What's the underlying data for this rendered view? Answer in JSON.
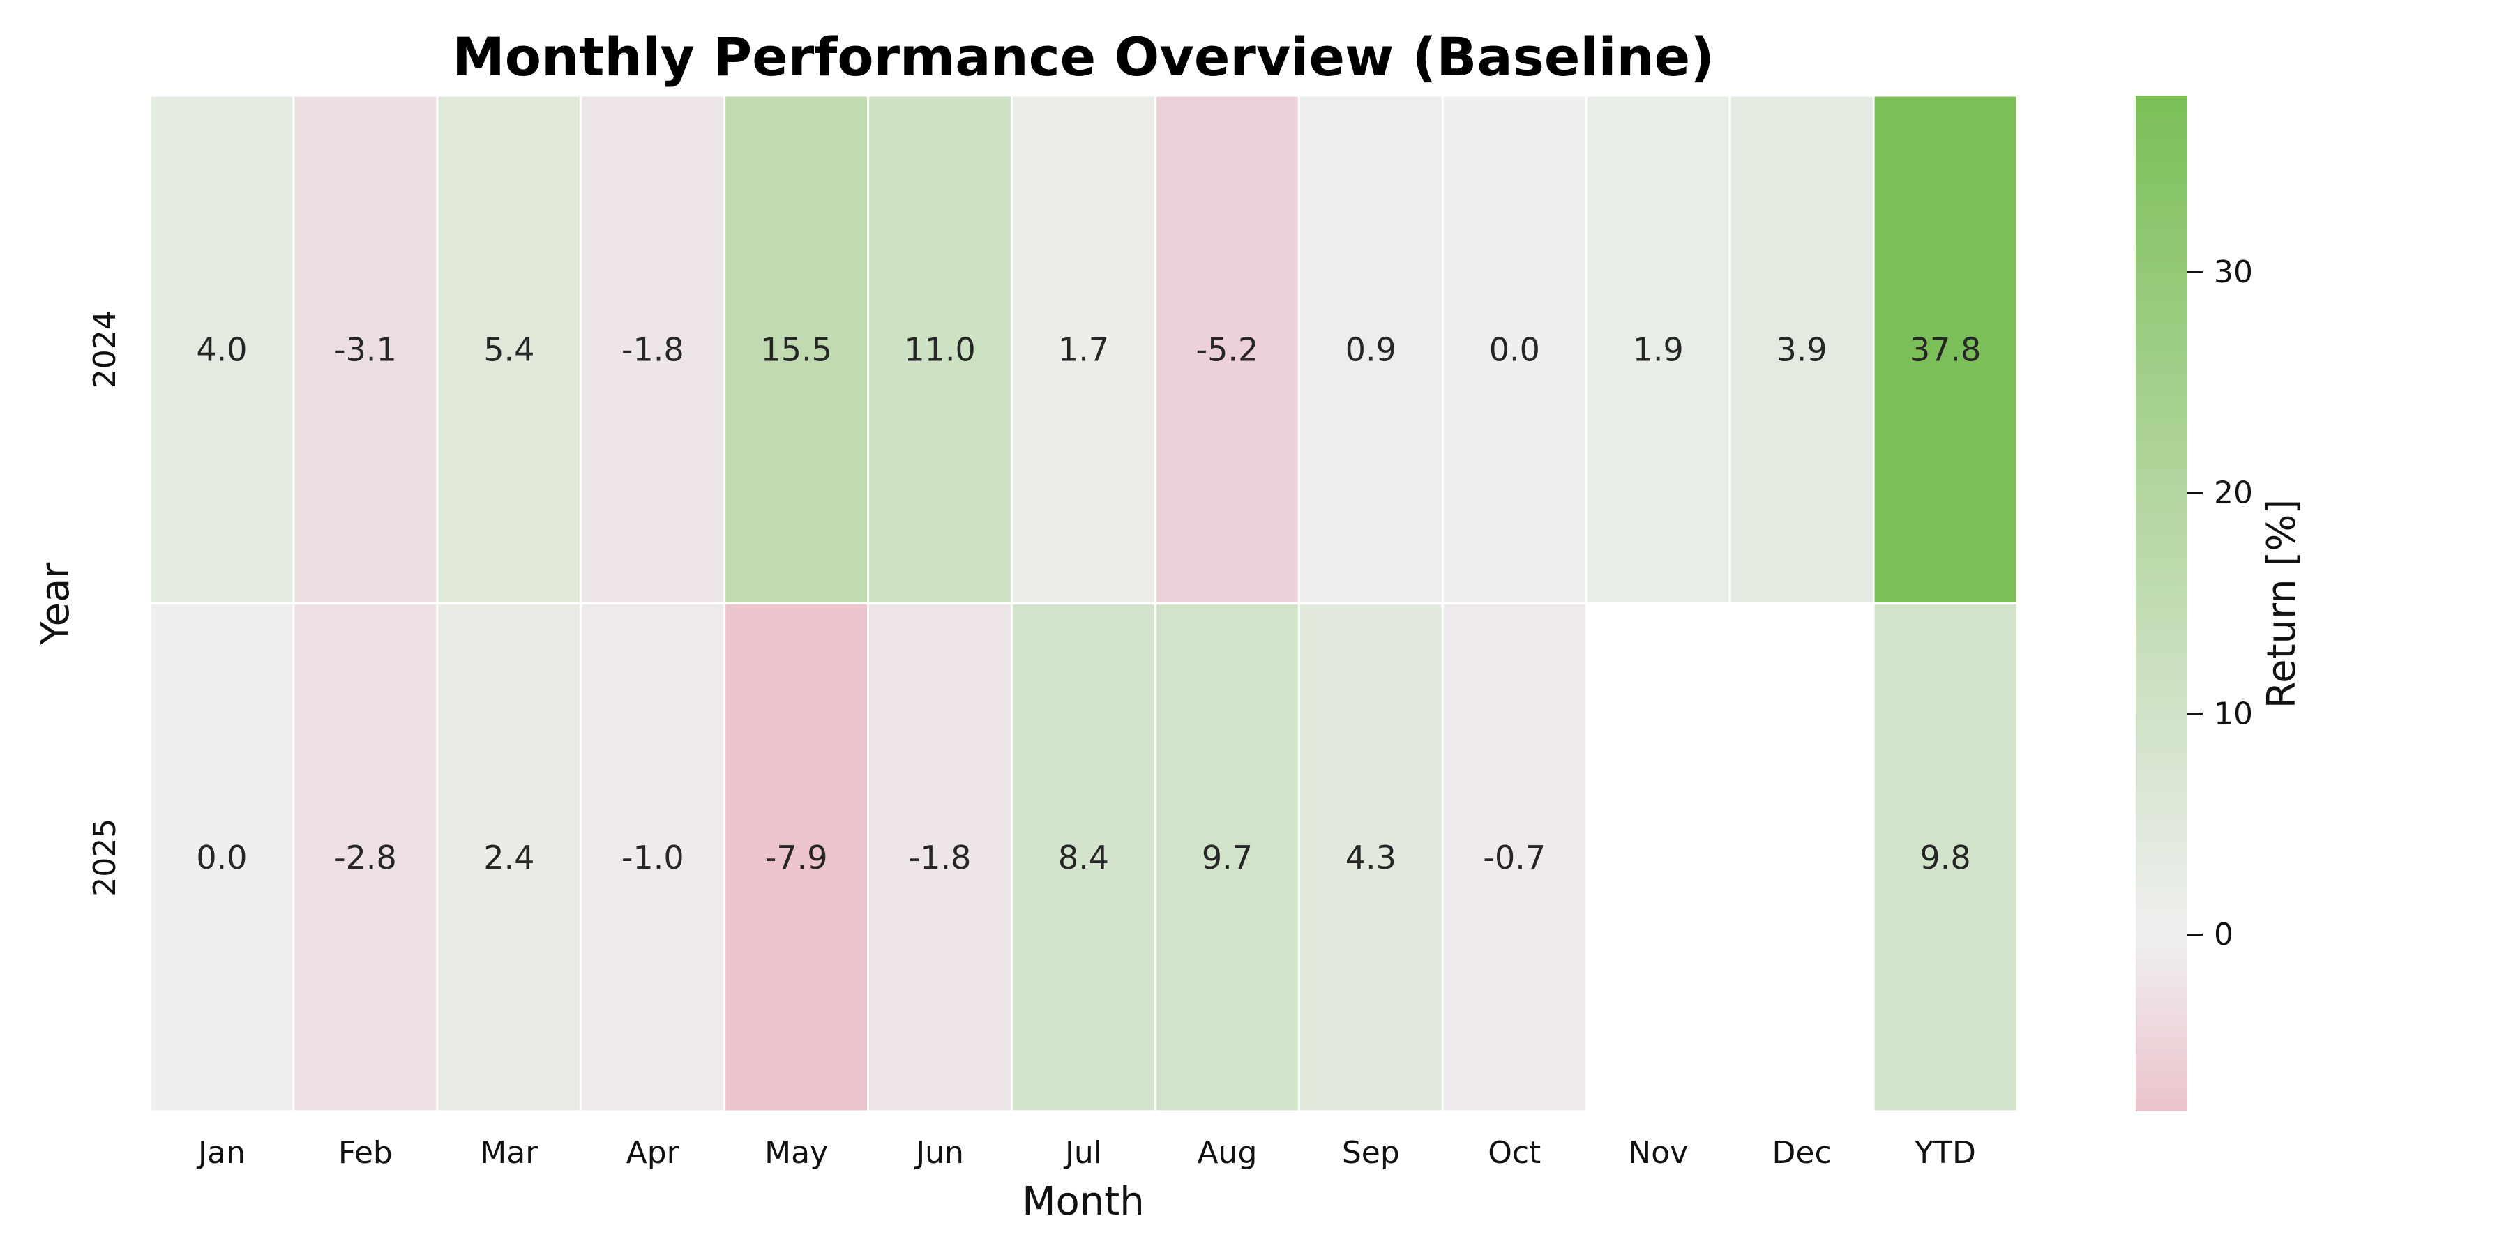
{
  "chart_data": {
    "type": "heatmap",
    "title": "Monthly Performance Overview (Baseline)",
    "xlabel": "Month",
    "ylabel": "Year",
    "x_categories": [
      "Jan",
      "Feb",
      "Mar",
      "Apr",
      "May",
      "Jun",
      "Jul",
      "Aug",
      "Sep",
      "Oct",
      "Nov",
      "Dec",
      "YTD"
    ],
    "y_categories": [
      "2024",
      "2025"
    ],
    "values": [
      [
        4.0,
        -3.1,
        5.4,
        -1.8,
        15.5,
        11.0,
        1.7,
        -5.2,
        0.9,
        0.0,
        1.9,
        3.9,
        37.8
      ],
      [
        0.0,
        -2.8,
        2.4,
        -1.0,
        -7.9,
        -1.8,
        8.4,
        9.7,
        4.3,
        -0.7,
        null,
        null,
        9.8
      ]
    ],
    "value_format": "0.0",
    "colorbar": {
      "label": "Return [%]",
      "range": [
        -8,
        38
      ],
      "ticks": [
        0,
        10,
        20,
        30
      ],
      "center": 0,
      "colors": {
        "negative": "#ebc3cc",
        "neutral": "#efefef",
        "positive": "#7bbf57"
      }
    },
    "grid": false
  }
}
